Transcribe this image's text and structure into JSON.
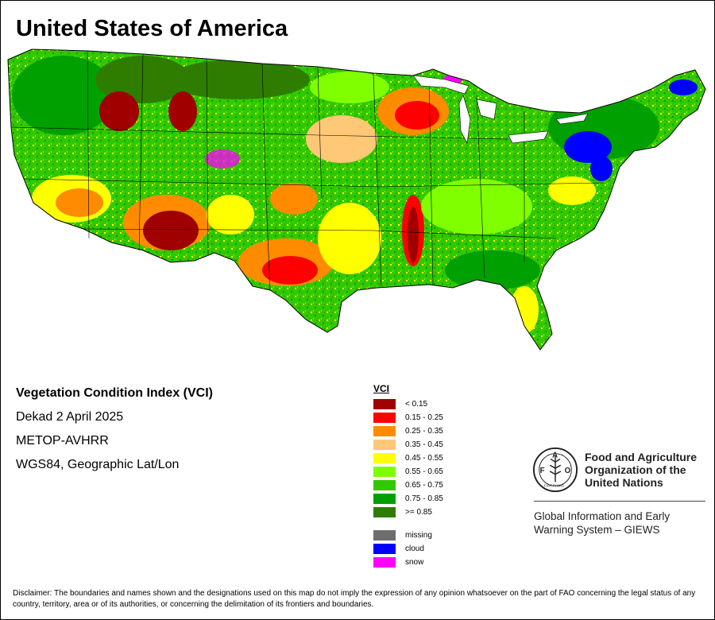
{
  "header": {
    "title": "United States of America"
  },
  "info": {
    "index_name": "Vegetation Condition Index (VCI)",
    "period": "Dekad 2 April 2025",
    "sensor": "METOP-AVHRR",
    "projection": "WGS84, Geographic Lat/Lon"
  },
  "legend": {
    "title": "VCI",
    "classes": [
      {
        "label": "< 0.15",
        "color": "#a00000"
      },
      {
        "label": "0.15 - 0.25",
        "color": "#ff0000"
      },
      {
        "label": "0.25 - 0.35",
        "color": "#ff8c00"
      },
      {
        "label": "0.35 - 0.45",
        "color": "#ffc877"
      },
      {
        "label": "0.45 - 0.55",
        "color": "#ffff00"
      },
      {
        "label": "0.55 - 0.65",
        "color": "#7fff00"
      },
      {
        "label": "0.65 - 0.75",
        "color": "#32c800"
      },
      {
        "label": "0.75 - 0.85",
        "color": "#00a000"
      },
      {
        "label": ">= 0.85",
        "color": "#2e7d00"
      }
    ],
    "special": [
      {
        "label": "missing",
        "color": "#6e6e6e"
      },
      {
        "label": "cloud",
        "color": "#0000ff"
      },
      {
        "label": "snow",
        "color": "#ff00ff"
      }
    ]
  },
  "organization": {
    "name_line1": "Food and Agriculture",
    "name_line2": "Organization of the",
    "name_line3": "United Nations",
    "emblem_letters": "FAO",
    "emblem_motto": "FIAT PANIS",
    "system_line1": "Global Information and Early",
    "system_line2": "Warning System – GIEWS"
  },
  "disclaimer": "Disclaimer: The boundaries and names shown and the designations used on this map do not imply the expression of any opinion whatsoever on the part of FAO concerning the legal status of any country, territory, area or of its authorities, or concerning the delimitation of its frontiers and boundaries."
}
